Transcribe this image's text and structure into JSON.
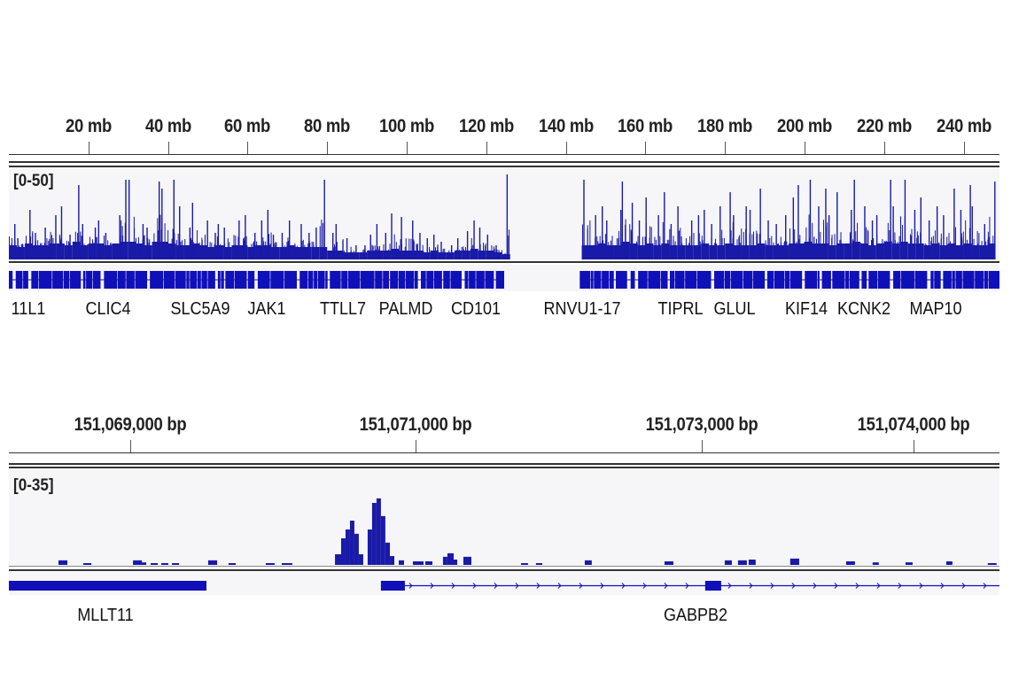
{
  "colors": {
    "signal": "#1a1aa8",
    "gene": "#1010b8",
    "track_bg": "#f6f6f8",
    "ruler": "#333333"
  },
  "chart_data": [
    {
      "type": "bar",
      "panel": "genome-wide",
      "x_unit": "mb",
      "xlim": [
        0,
        249
      ],
      "ticks": [
        {
          "value": 20,
          "label": "20 mb"
        },
        {
          "value": 40,
          "label": "40 mb"
        },
        {
          "value": 60,
          "label": "60 mb"
        },
        {
          "value": 80,
          "label": "80 mb"
        },
        {
          "value": 100,
          "label": "100 mb"
        },
        {
          "value": 120,
          "label": "120 mb"
        },
        {
          "value": 140,
          "label": "140 mb"
        },
        {
          "value": 160,
          "label": "160 mb"
        },
        {
          "value": 180,
          "label": "180 mb"
        },
        {
          "value": 200,
          "label": "200 mb"
        },
        {
          "value": 220,
          "label": "220 mb"
        },
        {
          "value": 240,
          "label": "240 mb"
        }
      ],
      "data_range_label": "[0-50]",
      "ylim": [
        0,
        50
      ],
      "bin_size_mb": 2,
      "bin_max": [
        20,
        12,
        28,
        15,
        18,
        25,
        30,
        14,
        42,
        20,
        18,
        22,
        15,
        25,
        45,
        45,
        20,
        18,
        44,
        40,
        45,
        30,
        18,
        32,
        22,
        15,
        20,
        18,
        22,
        25,
        15,
        22,
        28,
        14,
        15,
        22,
        20,
        15,
        18,
        45,
        15,
        20,
        12,
        8,
        8,
        14,
        20,
        15,
        26,
        24,
        22,
        15,
        12,
        14,
        10,
        8,
        12,
        16,
        22,
        18,
        14,
        8,
        48,
        0,
        0,
        0,
        0,
        0,
        0,
        0,
        0,
        0,
        45,
        25,
        30,
        22,
        28,
        44,
        32,
        22,
        35,
        25,
        38,
        20,
        30,
        22,
        25,
        28,
        20,
        30,
        38,
        25,
        30,
        28,
        40,
        22,
        20,
        25,
        35,
        42,
        45,
        30,
        40,
        25,
        38,
        28,
        45,
        30,
        22,
        25,
        45,
        30,
        45,
        28,
        35,
        22,
        30,
        25,
        40,
        28,
        42,
        30,
        20,
        44
      ],
      "bin_mean": [
        8,
        7,
        9,
        8,
        8,
        9,
        9,
        8,
        10,
        8,
        9,
        9,
        8,
        9,
        10,
        10,
        9,
        8,
        10,
        10,
        9,
        8,
        8,
        9,
        8,
        7,
        8,
        7,
        8,
        8,
        7,
        8,
        8,
        7,
        7,
        8,
        7,
        7,
        7,
        7,
        5,
        5,
        4,
        4,
        4,
        5,
        5,
        5,
        6,
        5,
        5,
        5,
        4,
        5,
        4,
        4,
        5,
        5,
        6,
        5,
        5,
        4,
        3,
        0,
        0,
        0,
        0,
        0,
        0,
        0,
        0,
        0,
        8,
        8,
        9,
        8,
        8,
        10,
        9,
        8,
        9,
        8,
        9,
        8,
        8,
        8,
        8,
        9,
        8,
        8,
        9,
        8,
        8,
        8,
        9,
        8,
        8,
        8,
        9,
        9,
        10,
        9,
        9,
        8,
        9,
        9,
        10,
        9,
        8,
        9,
        10,
        9,
        10,
        9,
        9,
        8,
        9,
        8,
        9,
        8,
        9,
        8,
        8,
        9
      ],
      "gene_density_regions_mb": [
        [
          0,
          124.5
        ],
        [
          143.5,
          249
        ]
      ],
      "genes": [
        {
          "name": "11L1",
          "mb": 4.9
        },
        {
          "name": "CLIC4",
          "mb": 24.9
        },
        {
          "name": "SLC5A9",
          "mb": 48
        },
        {
          "name": "JAK1",
          "mb": 64.7
        },
        {
          "name": "TTLL7",
          "mb": 84
        },
        {
          "name": "PALMD",
          "mb": 99.8
        },
        {
          "name": "CD101",
          "mb": 117.3
        },
        {
          "name": "RNVU1-17",
          "mb": 144.2
        },
        {
          "name": "TIPRL",
          "mb": 168.9
        },
        {
          "name": "GLUL",
          "mb": 182.4
        },
        {
          "name": "KIF14",
          "mb": 200.4
        },
        {
          "name": "KCNK2",
          "mb": 214.9
        },
        {
          "name": "MAP10",
          "mb": 233
        }
      ]
    },
    {
      "type": "bar",
      "panel": "locus",
      "x_unit": "bp",
      "xlim": [
        151068149,
        151075093
      ],
      "ticks": [
        {
          "label": "151,069,000 bp"
        },
        {
          "label": "151,071,000 bp"
        },
        {
          "label": "151,073,000 bp"
        },
        {
          "label": "151,074,000 bp"
        }
      ],
      "data_range_label": "[0-35]",
      "ylim": [
        0,
        35
      ],
      "segments": [
        [
          151068497,
          151068559,
          1.8
        ],
        [
          151068671,
          151068727,
          0.7
        ],
        [
          151069019,
          151069081,
          1.8
        ],
        [
          151069081,
          151069112,
          1.0
        ],
        [
          151069143,
          151069193,
          0.7
        ],
        [
          151069217,
          151069267,
          0.7
        ],
        [
          151069292,
          151069342,
          0.7
        ],
        [
          151069546,
          151069609,
          1.8
        ],
        [
          151069689,
          151069739,
          0.7
        ],
        [
          151069950,
          151070012,
          0.7
        ],
        [
          151070062,
          151070136,
          0.7
        ],
        [
          151070435,
          151070478,
          4.2
        ],
        [
          151070478,
          151070509,
          10.5
        ],
        [
          151070509,
          151070540,
          14
        ],
        [
          151070540,
          151070571,
          17.5
        ],
        [
          151070571,
          151070602,
          12.3
        ],
        [
          151070602,
          151070633,
          4.2
        ],
        [
          151070664,
          151070695,
          14
        ],
        [
          151070695,
          151070726,
          24.5
        ],
        [
          151070726,
          151070757,
          26.3
        ],
        [
          151070757,
          151070788,
          19.3
        ],
        [
          151070788,
          151070820,
          8.8
        ],
        [
          151070820,
          151070851,
          3.5
        ],
        [
          151070882,
          151070919,
          1.8
        ],
        [
          151070981,
          151071056,
          1.4
        ],
        [
          151071068,
          151071118,
          1.4
        ],
        [
          151071192,
          151071223,
          3.2
        ],
        [
          151071223,
          151071267,
          4.6
        ],
        [
          151071267,
          151071292,
          2.1
        ],
        [
          151071335,
          151071391,
          3.2
        ],
        [
          151071739,
          151071788,
          0.7
        ],
        [
          151071844,
          151071888,
          0.7
        ],
        [
          151072186,
          151072235,
          1.8
        ],
        [
          151072745,
          151072807,
          1.4
        ],
        [
          151073167,
          151073217,
          1.8
        ],
        [
          151073260,
          151073322,
          1.8
        ],
        [
          151073335,
          151073384,
          2.1
        ],
        [
          151073626,
          151073689,
          2.5
        ],
        [
          151074018,
          151074080,
          1.4
        ],
        [
          151074204,
          151074247,
          1.0
        ],
        [
          151074434,
          151074484,
          1.0
        ],
        [
          151074720,
          151074763,
          1.4
        ],
        [
          151075011,
          151075073,
          0.7
        ]
      ],
      "genes": [
        {
          "name": "MLLT11",
          "blocks": [
            [
              151068149,
              151069534
            ]
          ],
          "label": "MLLT11"
        },
        {
          "name": "GABPB2",
          "strand": "+",
          "span": [
            151070757,
            151075093
          ],
          "blocks": [
            [
              151070757,
              151070925
            ],
            [
              151073030,
              151073142
            ]
          ],
          "label": "GABPB2"
        }
      ]
    }
  ]
}
